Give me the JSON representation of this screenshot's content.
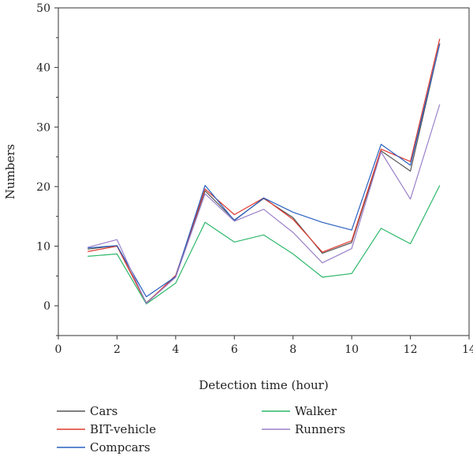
{
  "chart_data": {
    "type": "line",
    "title": "",
    "xlabel": "Detection time (hour)",
    "ylabel": "Numbers",
    "xlim": [
      0,
      14
    ],
    "ylim": [
      -5,
      50
    ],
    "xticks": [
      0,
      2,
      4,
      6,
      8,
      10,
      12,
      14
    ],
    "yticks": [
      0,
      10,
      20,
      30,
      40,
      50
    ],
    "grid": false,
    "legend_position": "bottom",
    "x": [
      1,
      2,
      3,
      4,
      5,
      6,
      7,
      8,
      9,
      10,
      11,
      12,
      13
    ],
    "series": [
      {
        "name": "Cars",
        "color": "#555555",
        "values": [
          9.5,
          10.1,
          0.5,
          4.9,
          19.3,
          14.4,
          18.0,
          14.8,
          8.8,
          10.6,
          26.0,
          22.6,
          44.0
        ]
      },
      {
        "name": "BIT-vehicle",
        "color": "#e0382e",
        "values": [
          9.1,
          10.0,
          0.4,
          5.1,
          19.6,
          15.3,
          18.1,
          14.5,
          9.0,
          10.9,
          26.3,
          24.2,
          44.8
        ]
      },
      {
        "name": "Compcars",
        "color": "#2860c0",
        "values": [
          9.7,
          10.1,
          1.5,
          4.9,
          20.2,
          14.3,
          18.1,
          15.7,
          14.0,
          12.7,
          27.1,
          23.6,
          44.0
        ]
      },
      {
        "name": "Walker",
        "color": "#2db86a",
        "values": [
          8.3,
          8.7,
          0.3,
          3.8,
          14.0,
          10.7,
          11.9,
          8.7,
          4.8,
          5.4,
          13.0,
          10.4,
          20.2
        ]
      },
      {
        "name": "Runners",
        "color": "#9a80c8",
        "values": [
          9.8,
          11.1,
          0.4,
          4.8,
          18.8,
          14.2,
          16.2,
          12.3,
          7.2,
          9.6,
          25.8,
          17.9,
          33.8
        ]
      }
    ]
  }
}
